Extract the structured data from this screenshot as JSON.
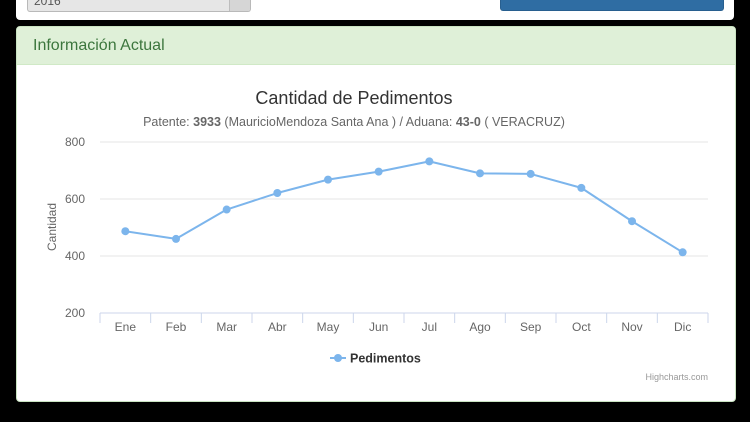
{
  "top_bar": {
    "select_value": "2016"
  },
  "panel": {
    "heading": "Información Actual"
  },
  "chart_data": {
    "type": "line",
    "title": "Cantidad de Pedimentos",
    "subtitle": {
      "prefix": "Patente: ",
      "patente": "3933",
      "middle": " (MauricioMendoza Santa Ana ) / Aduana: ",
      "aduana": "43-0",
      "suffix": " ( VERACRUZ)"
    },
    "ylabel": "Cantidad",
    "xlabel": "",
    "ylim": [
      200,
      800
    ],
    "yticks": [
      200,
      400,
      600,
      800
    ],
    "categories": [
      "Ene",
      "Feb",
      "Mar",
      "Abr",
      "May",
      "Jun",
      "Jul",
      "Ago",
      "Sep",
      "Oct",
      "Nov",
      "Dic"
    ],
    "series": [
      {
        "name": "Pedimentos",
        "color": "#7cb5ec",
        "values": [
          487,
          460,
          563,
          621,
          668,
          696,
          732,
          690,
          688,
          639,
          522,
          413
        ]
      }
    ],
    "legend_position": "bottom-center",
    "grid": true,
    "credits": "Highcharts.com"
  }
}
